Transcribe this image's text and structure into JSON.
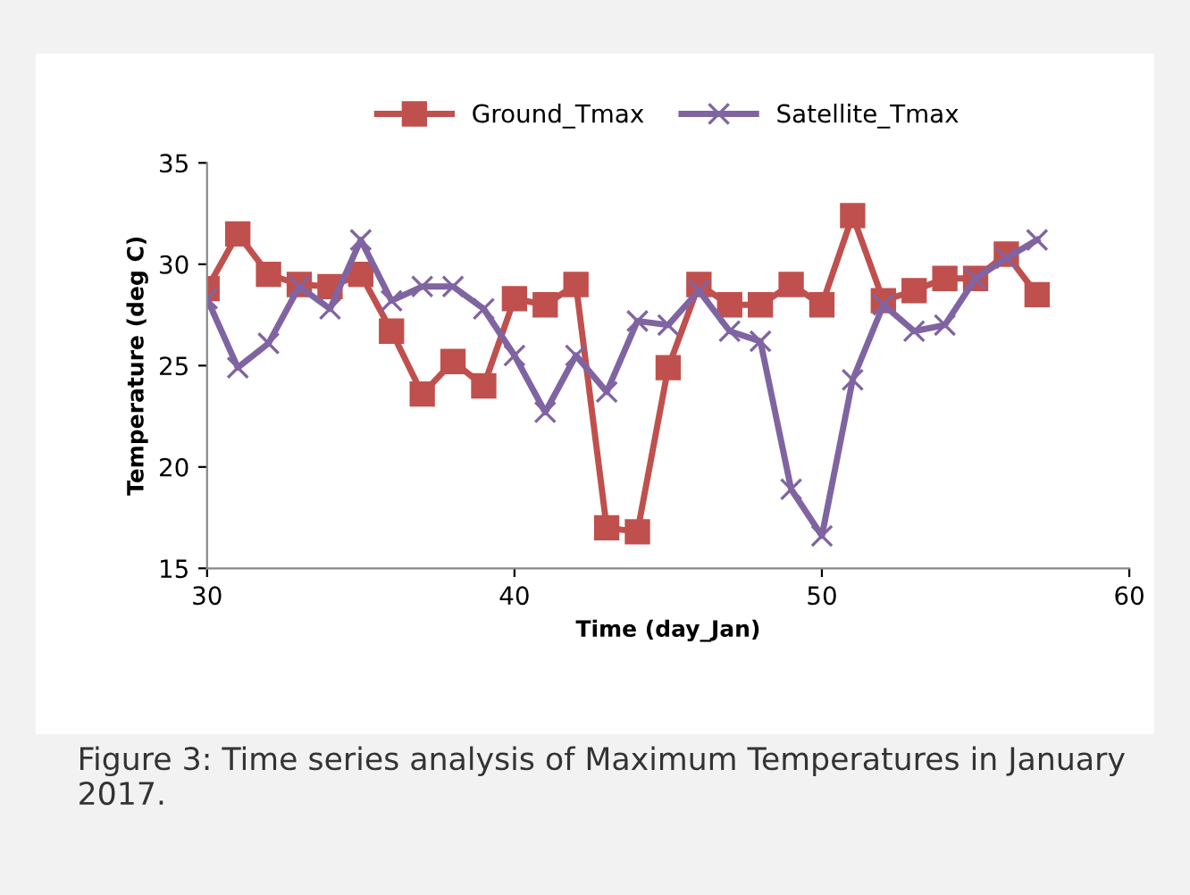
{
  "chart_data": {
    "type": "line",
    "xlabel": "Time (day_Jan)",
    "ylabel": "Temperature (deg C)",
    "x": [
      30,
      31,
      32,
      33,
      34,
      35,
      36,
      37,
      38,
      39,
      40,
      41,
      42,
      43,
      44,
      45,
      46,
      47,
      48,
      49,
      50,
      51,
      52,
      53,
      54,
      55,
      56,
      57
    ],
    "series": [
      {
        "name": "Ground_Tmax",
        "color": "#c0504d",
        "marker": "square",
        "values": [
          28.8,
          31.5,
          29.5,
          29.0,
          28.9,
          29.5,
          26.7,
          23.6,
          25.2,
          24.0,
          28.3,
          28.0,
          29.0,
          17.0,
          16.8,
          24.9,
          29.0,
          28.0,
          28.0,
          29.0,
          28.0,
          32.4,
          28.2,
          28.7,
          29.3,
          29.3,
          30.5,
          28.5
        ]
      },
      {
        "name": "Satellite_Tmax",
        "color": "#8064a2",
        "marker": "cross",
        "values": [
          28.3,
          24.9,
          26.1,
          28.9,
          27.8,
          31.2,
          28.2,
          28.9,
          28.9,
          27.8,
          25.5,
          22.7,
          25.5,
          23.7,
          27.2,
          27.0,
          28.7,
          26.7,
          26.2,
          18.9,
          16.6,
          24.3,
          28.0,
          26.7,
          27.0,
          29.3,
          30.3,
          31.2
        ]
      }
    ],
    "xlim": [
      30,
      60
    ],
    "xticks": [
      30,
      40,
      50,
      60
    ],
    "ylim": [
      15,
      35
    ],
    "yticks": [
      15,
      20,
      25,
      30,
      35
    ],
    "grid": false,
    "legend": "top",
    "annotations": [
      "Figure 3: Time series analysis of Maximum Temperatures in January 2017."
    ]
  }
}
